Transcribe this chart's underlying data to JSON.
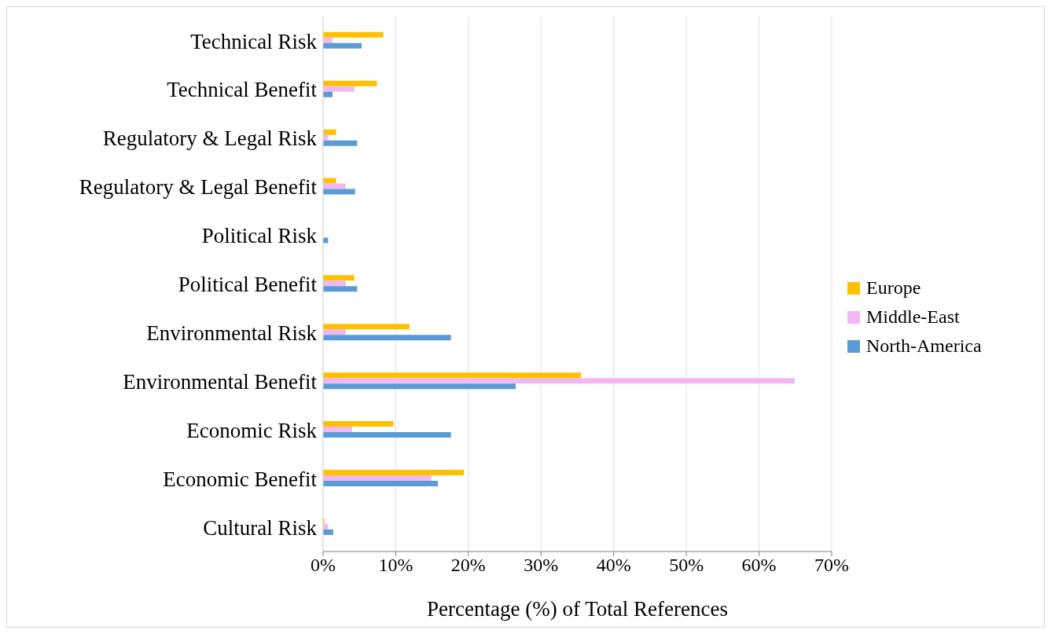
{
  "chart_data": {
    "type": "bar",
    "orientation": "horizontal",
    "xlabel": "Percentage (%) of Total References",
    "categories": [
      "Technical Risk",
      "Technical Benefit",
      "Regulatory & Legal Risk",
      "Regulatory & Legal Benefit",
      "Political Risk",
      "Political Benefit",
      "Environmental Risk",
      "Environmental Benefit",
      "Economic Risk",
      "Economic Benefit",
      "Cultural Risk"
    ],
    "series": [
      {
        "name": "Europe",
        "color": "#ffc000",
        "values": [
          8.3,
          7.4,
          1.8,
          1.8,
          0,
          4.3,
          11.9,
          35.5,
          9.7,
          19.4,
          0.2
        ]
      },
      {
        "name": "Middle-East",
        "color": "#f0b8ee",
        "values": [
          1.3,
          4.3,
          0.7,
          3.1,
          0,
          3.1,
          3.1,
          64.9,
          4.0,
          14.9,
          0.7
        ]
      },
      {
        "name": "North-America",
        "color": "#5b9bd5",
        "values": [
          5.3,
          1.3,
          4.7,
          4.4,
          0.7,
          4.7,
          17.6,
          26.5,
          17.6,
          15.8,
          1.4
        ]
      }
    ],
    "xlim": [
      0,
      70
    ],
    "xticks": [
      {
        "value": 0,
        "label": "0%"
      },
      {
        "value": 10,
        "label": "10%"
      },
      {
        "value": 20,
        "label": "20%"
      },
      {
        "value": 30,
        "label": "30%"
      },
      {
        "value": 40,
        "label": "40%"
      },
      {
        "value": 50,
        "label": "50%"
      },
      {
        "value": 60,
        "label": "60%"
      },
      {
        "value": 70,
        "label": "70%"
      }
    ],
    "grid": "x",
    "legend": "right"
  }
}
